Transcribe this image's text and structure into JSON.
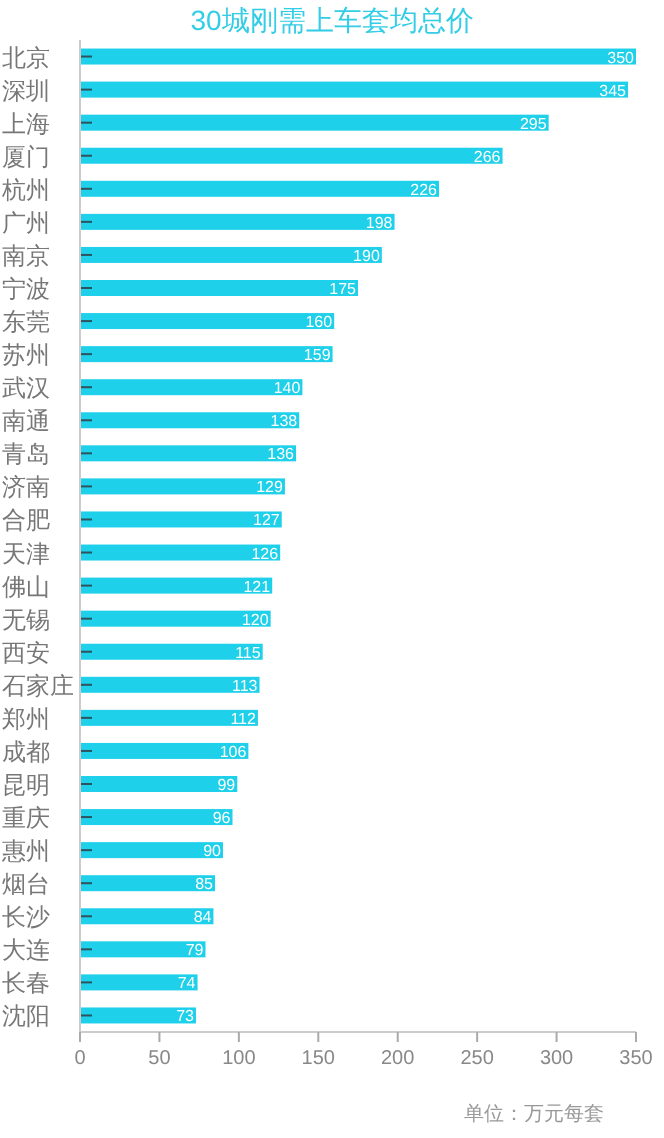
{
  "chart_data": {
    "type": "bar",
    "orientation": "horizontal",
    "title": "30城刚需上车套均总价",
    "categories": [
      "北京",
      "深圳",
      "上海",
      "厦门",
      "杭州",
      "广州",
      "南京",
      "宁波",
      "东莞",
      "苏州",
      "武汉",
      "南通",
      "青岛",
      "济南",
      "合肥",
      "天津",
      "佛山",
      "无锡",
      "西安",
      "石家庄",
      "郑州",
      "成都",
      "昆明",
      "重庆",
      "惠州",
      "烟台",
      "长沙",
      "大连",
      "长春",
      "沈阳"
    ],
    "values": [
      350,
      345,
      295,
      266,
      226,
      198,
      190,
      175,
      160,
      159,
      140,
      138,
      136,
      129,
      127,
      126,
      121,
      120,
      115,
      113,
      112,
      106,
      99,
      96,
      90,
      85,
      84,
      79,
      74,
      73
    ],
    "color": "#1fd0ea",
    "xlim": [
      0,
      350
    ],
    "xticks": [
      0,
      50,
      100,
      150,
      200,
      250,
      300,
      350
    ],
    "data_labels": true,
    "annotations": [
      "单位：万元每套"
    ]
  }
}
